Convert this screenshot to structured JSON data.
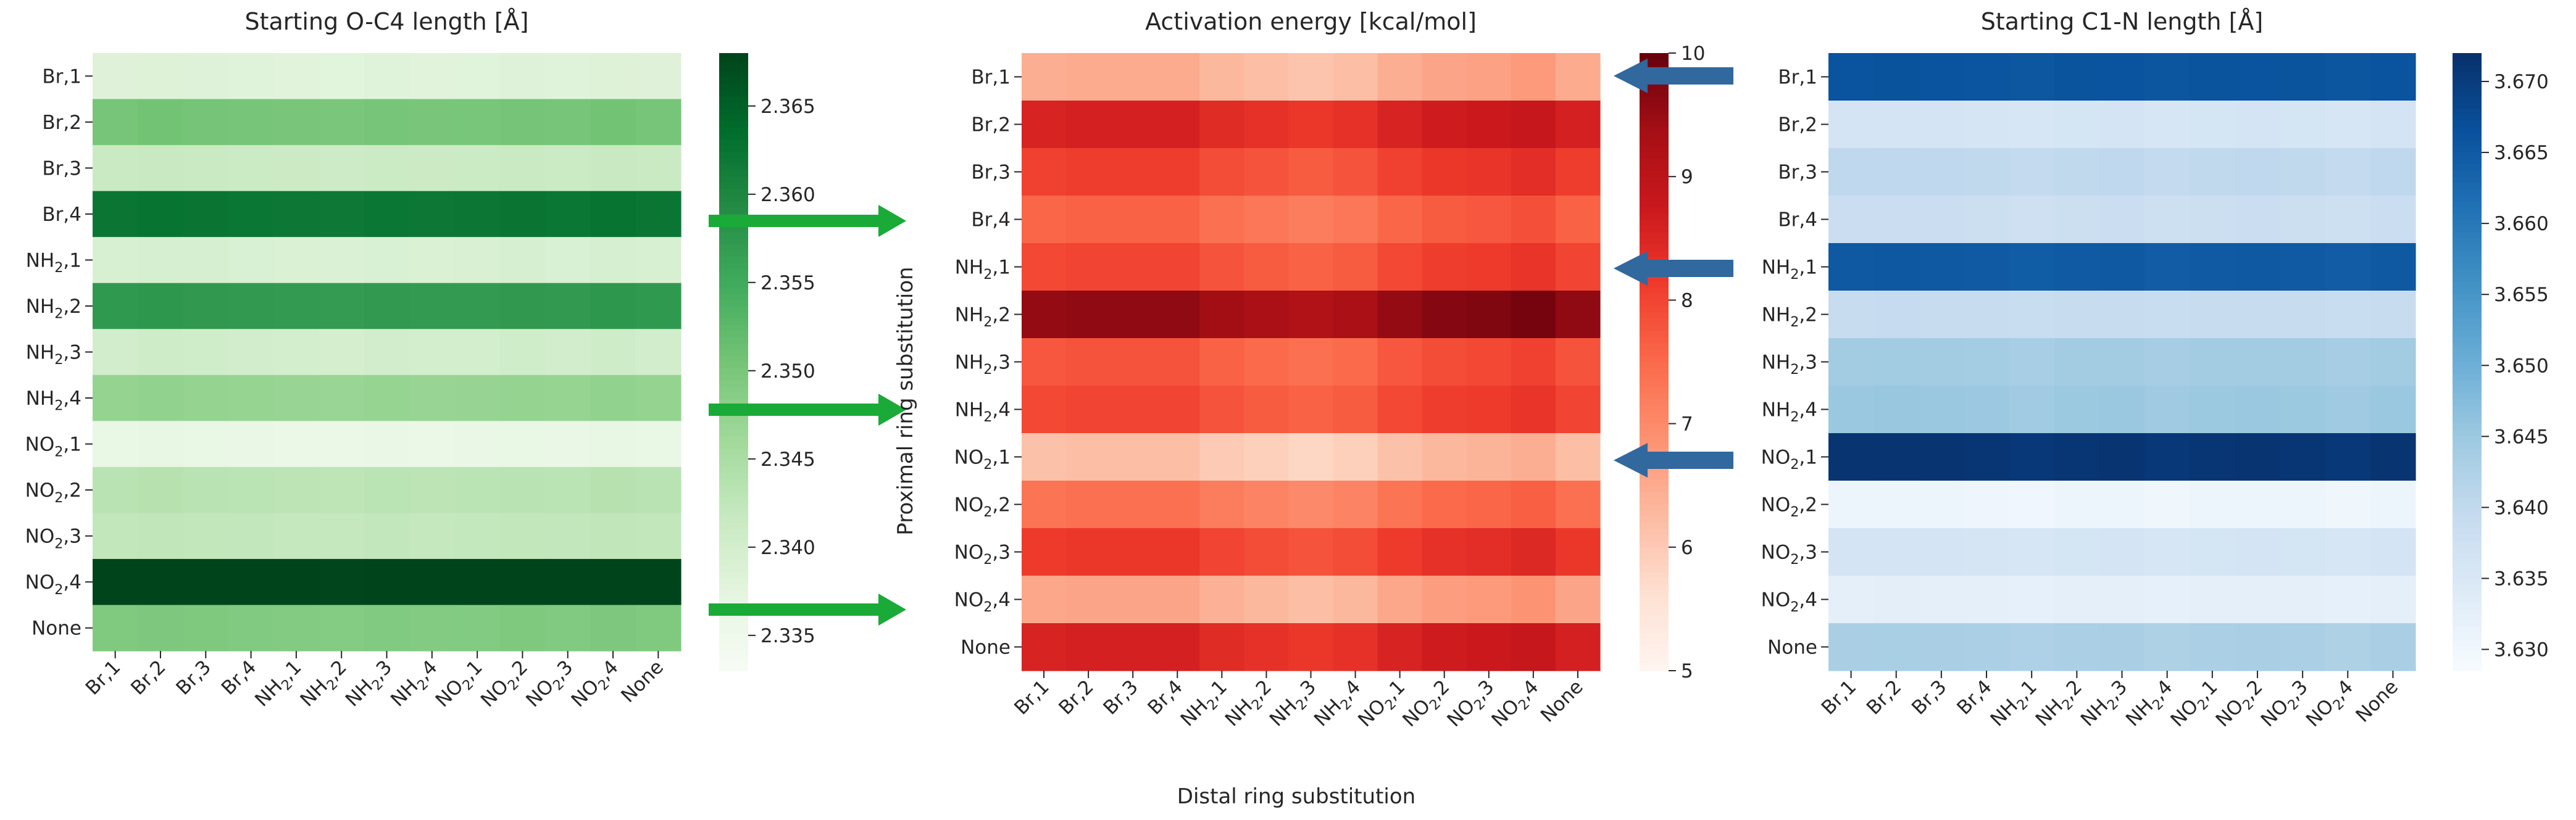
{
  "figure": {
    "x_axis_label": "Distal ring substitution",
    "y_axis_label": "Proximal ring substitution",
    "arrow_colors": {
      "green": "#1aaa38",
      "blue": "#31689e"
    }
  },
  "chart_data": [
    {
      "type": "heatmap",
      "title": "Starting O-C4 length [Å]",
      "colormap": "Greens",
      "vmin": 2.333,
      "vmax": 2.368,
      "colorbar_ticks": [
        "2.335",
        "2.340",
        "2.345",
        "2.350",
        "2.355",
        "2.360",
        "2.365"
      ],
      "row_labels": [
        "Br,1",
        "Br,2",
        "Br,3",
        "Br,4",
        "NH2,1",
        "NH2,2",
        "NH2,3",
        "NH2,4",
        "NO2,1",
        "NO2,2",
        "NO2,3",
        "NO2,4",
        "None"
      ],
      "col_labels": [
        "Br,1",
        "Br,2",
        "Br,3",
        "Br,4",
        "NH2,1",
        "NH2,2",
        "NH2,3",
        "NH2,4",
        "NO2,1",
        "NO2,2",
        "NO2,3",
        "NO2,4",
        "None"
      ],
      "row_values": [
        2.338,
        2.35,
        2.341,
        2.362,
        2.339,
        2.357,
        2.34,
        2.347,
        2.336,
        2.343,
        2.342,
        2.368,
        2.349
      ],
      "col_offsets": [
        0.0003,
        0.0006,
        0.0004,
        0.0002,
        0,
        -0.0001,
        0.0002,
        0,
        0.0001,
        0.0004,
        0.0002,
        0.0006,
        0.0003
      ]
    },
    {
      "type": "heatmap",
      "title": "Activation energy [kcal/mol]",
      "colormap": "Reds",
      "vmin": 5,
      "vmax": 10,
      "colorbar_ticks": [
        "5",
        "6",
        "7",
        "8",
        "9",
        "10"
      ],
      "row_labels": [
        "Br,1",
        "Br,2",
        "Br,3",
        "Br,4",
        "NH2,1",
        "NH2,2",
        "NH2,3",
        "NH2,4",
        "NO2,1",
        "NO2,2",
        "NO2,3",
        "NO2,4",
        "None"
      ],
      "col_labels": [
        "Br,1",
        "Br,2",
        "Br,3",
        "Br,4",
        "NH2,1",
        "NH2,2",
        "NH2,3",
        "NH2,4",
        "NO2,1",
        "NO2,2",
        "NO2,3",
        "NO2,4",
        "None"
      ],
      "row_values": [
        6.3,
        8.4,
        7.9,
        7.4,
        7.8,
        9.4,
        7.6,
        7.8,
        6.0,
        7.2,
        8.0,
        6.4,
        8.4
      ],
      "col_offsets": [
        0.15,
        0.2,
        0.2,
        0.2,
        0,
        -0.1,
        -0.2,
        -0.1,
        0.15,
        0.3,
        0.35,
        0.45,
        0.2
      ]
    },
    {
      "type": "heatmap",
      "title": "Starting C1-N length [Å]",
      "colormap": "Blues",
      "vmin": 3.6285,
      "vmax": 3.672,
      "colorbar_ticks": [
        "3.630",
        "3.635",
        "3.640",
        "3.645",
        "3.650",
        "3.655",
        "3.660",
        "3.665",
        "3.670"
      ],
      "row_labels": [
        "Br,1",
        "Br,2",
        "Br,3",
        "Br,4",
        "NH2,1",
        "NH2,2",
        "NH2,3",
        "NH2,4",
        "NO2,1",
        "NO2,2",
        "NO2,3",
        "NO2,4",
        "None"
      ],
      "col_labels": [
        "Br,1",
        "Br,2",
        "Br,3",
        "Br,4",
        "NH2,1",
        "NH2,2",
        "NH2,3",
        "NH2,4",
        "NO2,1",
        "NO2,2",
        "NO2,3",
        "NO2,4",
        "None"
      ],
      "row_values": [
        3.666,
        3.636,
        3.64,
        3.638,
        3.665,
        3.639,
        3.644,
        3.645,
        3.671,
        3.6305,
        3.636,
        3.6325,
        3.643
      ],
      "col_offsets": [
        0.0002,
        0.0003,
        0.0002,
        0,
        -0.0004,
        0.0001,
        0.0002,
        -0.0003,
        0.0001,
        0.0002,
        0.0001,
        -0.0003,
        0.0002
      ]
    }
  ]
}
